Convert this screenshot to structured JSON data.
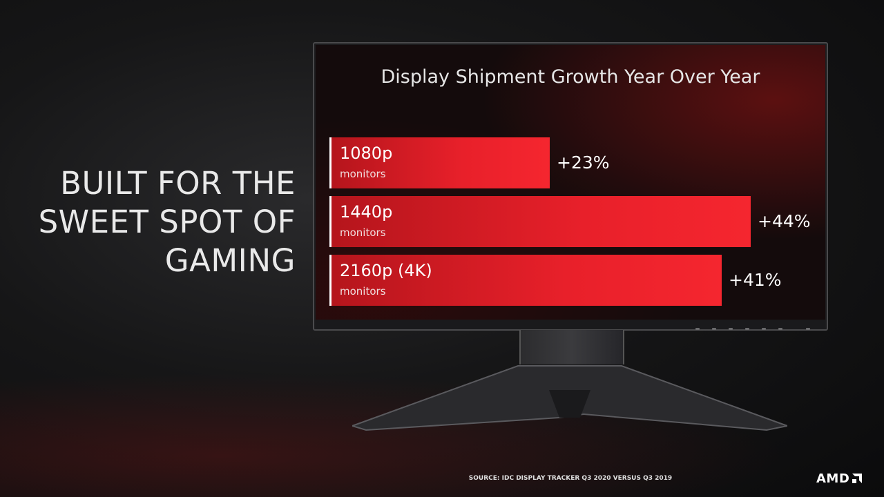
{
  "headline": [
    "BUILT FOR THE",
    "SWEET SPOT OF",
    "GAMING"
  ],
  "chart_data": {
    "type": "bar",
    "orientation": "horizontal",
    "title": "Display Shipment Growth Year Over Year",
    "categories": [
      "1080p",
      "1440p",
      "2160p (4K)"
    ],
    "sublabels": [
      "monitors",
      "monitors",
      "monitors"
    ],
    "values": [
      23,
      44,
      41
    ],
    "value_labels": [
      "+23%",
      "+44%",
      "+41%"
    ],
    "unit": "%",
    "xlim": [
      0,
      44
    ],
    "colors": {
      "bar": "#e8202a",
      "bar_dark": "#b5151c"
    }
  },
  "source": "SOURCE: IDC DISPLAY TRACKER Q3 2020 VERSUS Q3 2019",
  "logo": "AMD"
}
